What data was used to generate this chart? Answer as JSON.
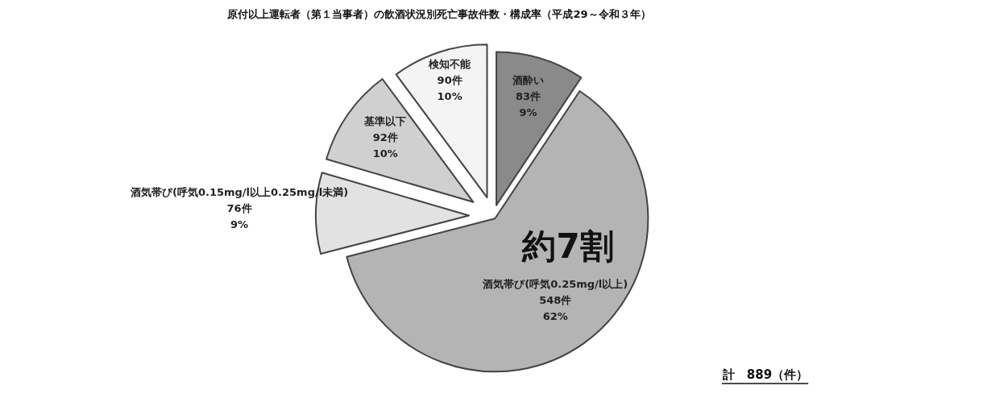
{
  "chart_data": {
    "type": "pie",
    "title": "原付以上運転者（第１当事者）の飲酒状況別死亡事故件数・構成率（平成29～令和３年）",
    "categories": [
      "酒酔い",
      "酒気帯び(呼気0.25mg/l以上)",
      "酒気帯び(呼気0.15mg/l以上0.25mg/l未満)",
      "基準以下",
      "検知不能"
    ],
    "values": [
      83,
      548,
      76,
      92,
      90
    ],
    "colors": [
      "#8a8a8a",
      "#b4b4b4",
      "#e2e2e2",
      "#d0d0d0",
      "#f4f4f4"
    ],
    "value_labels": [
      "83件\n9%",
      "548件\n62%",
      "76件\n9%",
      "92件\n10%",
      "90件\n10%"
    ],
    "annotations": [
      "約7割",
      "計　889（件）"
    ]
  }
}
